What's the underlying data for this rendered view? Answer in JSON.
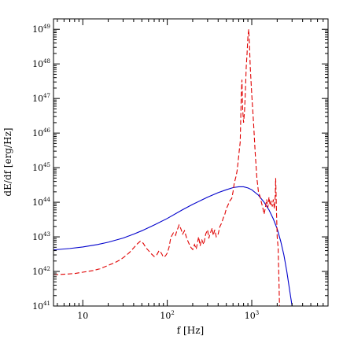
{
  "chart_data": {
    "type": "line",
    "title": "",
    "xlabel": "f [Hz]",
    "ylabel": "dE/df [erg/Hz]",
    "x_scale": "log",
    "y_scale": "log",
    "xlim": [
      4.5,
      8000
    ],
    "ylim": [
      1e+41,
      2e+49
    ],
    "grid": false,
    "x_ticks": [
      {
        "value": 10,
        "base": "10",
        "exp": ""
      },
      {
        "value": 100,
        "base": "10",
        "exp": "2"
      },
      {
        "value": 1000,
        "base": "10",
        "exp": "3"
      }
    ],
    "y_ticks": [
      {
        "value": 1e+41,
        "base": "10",
        "exp": "41"
      },
      {
        "value": 1e+42,
        "base": "10",
        "exp": "42"
      },
      {
        "value": 1e+43,
        "base": "10",
        "exp": "43"
      },
      {
        "value": 1e+44,
        "base": "10",
        "exp": "44"
      },
      {
        "value": 1e+45,
        "base": "10",
        "exp": "45"
      },
      {
        "value": 1e+46,
        "base": "10",
        "exp": "46"
      },
      {
        "value": 1e+47,
        "base": "10",
        "exp": "47"
      },
      {
        "value": 1e+48,
        "base": "10",
        "exp": "48"
      },
      {
        "value": 1e+49,
        "base": "10",
        "exp": "49"
      }
    ],
    "series": [
      {
        "color": "#0000cc",
        "dash": "solid",
        "points": [
          [
            4.5,
            4.2e+42
          ],
          [
            7,
            4.6e+42
          ],
          [
            10,
            5.1e+42
          ],
          [
            15,
            6e+42
          ],
          [
            20,
            7e+42
          ],
          [
            30,
            9.2e+42
          ],
          [
            40,
            1.2e+43
          ],
          [
            50,
            1.5e+43
          ],
          [
            70,
            2.2e+43
          ],
          [
            100,
            3.4e+43
          ],
          [
            150,
            6e+43
          ],
          [
            200,
            8.7e+43
          ],
          [
            300,
            1.4e+44
          ],
          [
            400,
            1.9e+44
          ],
          [
            500,
            2.3e+44
          ],
          [
            600,
            2.65e+44
          ],
          [
            700,
            2.8e+44
          ],
          [
            800,
            2.8e+44
          ],
          [
            900,
            2.6e+44
          ],
          [
            1000,
            2.3e+44
          ],
          [
            1200,
            1.6e+44
          ],
          [
            1400,
            1e+44
          ],
          [
            1600,
            6e+43
          ],
          [
            1800,
            3.3e+43
          ],
          [
            2000,
            1.7e+43
          ],
          [
            2200,
            7.5e+42
          ],
          [
            2400,
            3e+42
          ],
          [
            2600,
            1e+42
          ],
          [
            2800,
            3e+41
          ],
          [
            3000,
            1e+41
          ]
        ]
      },
      {
        "color": "#e00000",
        "dash": "dashed",
        "points": [
          [
            4.5,
            8e+41
          ],
          [
            6,
            8.3e+41
          ],
          [
            8,
            8.7e+41
          ],
          [
            10,
            9.5e+41
          ],
          [
            13,
            1.05e+42
          ],
          [
            16,
            1.2e+42
          ],
          [
            20,
            1.5e+42
          ],
          [
            24,
            1.8e+42
          ],
          [
            28,
            2.2e+42
          ],
          [
            32,
            2.8e+42
          ],
          [
            36,
            3.6e+42
          ],
          [
            40,
            4.8e+42
          ],
          [
            44,
            6.2e+42
          ],
          [
            48,
            7.5e+42
          ],
          [
            52,
            6.5e+42
          ],
          [
            56,
            4.8e+42
          ],
          [
            60,
            4e+42
          ],
          [
            65,
            3.2e+42
          ],
          [
            70,
            2.7e+42
          ],
          [
            75,
            3e+42
          ],
          [
            80,
            4e+42
          ],
          [
            85,
            3.4e+42
          ],
          [
            90,
            2.6e+42
          ],
          [
            95,
            2.8e+42
          ],
          [
            100,
            3.4e+42
          ],
          [
            105,
            5e+42
          ],
          [
            110,
            9.5e+42
          ],
          [
            118,
            1.3e+43
          ],
          [
            125,
            1.1e+43
          ],
          [
            130,
            1.5e+43
          ],
          [
            138,
            2.2e+43
          ],
          [
            145,
            1.7e+43
          ],
          [
            152,
            1.2e+43
          ],
          [
            160,
            1.5e+43
          ],
          [
            170,
            9e+42
          ],
          [
            180,
            6.5e+42
          ],
          [
            190,
            5e+42
          ],
          [
            200,
            4.3e+42
          ],
          [
            210,
            6e+42
          ],
          [
            220,
            4.4e+42
          ],
          [
            235,
            1e+43
          ],
          [
            245,
            5.5e+42
          ],
          [
            255,
            8.5e+42
          ],
          [
            270,
            6e+42
          ],
          [
            285,
            1.2e+43
          ],
          [
            300,
            1.6e+43
          ],
          [
            310,
            9e+42
          ],
          [
            320,
            1.2e+43
          ],
          [
            340,
            1.8e+43
          ],
          [
            350,
            1.1e+43
          ],
          [
            365,
            1.6e+43
          ],
          [
            380,
            1e+43
          ],
          [
            400,
            1.2e+43
          ],
          [
            420,
            2e+43
          ],
          [
            440,
            2.5e+43
          ],
          [
            460,
            3.5e+43
          ],
          [
            480,
            4.5e+43
          ],
          [
            500,
            6.5e+43
          ],
          [
            520,
            8e+43
          ],
          [
            550,
            1.1e+44
          ],
          [
            580,
            1.3e+44
          ],
          [
            600,
            2e+44
          ],
          [
            620,
            3.5e+44
          ],
          [
            650,
            5.5e+44
          ],
          [
            670,
            8e+44
          ],
          [
            690,
            1.5e+45
          ],
          [
            710,
            3e+45
          ],
          [
            730,
            5.5e+45
          ],
          [
            750,
            1e+47
          ],
          [
            765,
            3.5e+47
          ],
          [
            780,
            5e+46
          ],
          [
            800,
            2e+46
          ],
          [
            820,
            4e+46
          ],
          [
            840,
            1.5e+47
          ],
          [
            860,
            8e+47
          ],
          [
            880,
            2e+48
          ],
          [
            900,
            6e+48
          ],
          [
            920,
            1e+49
          ],
          [
            940,
            3.5e+48
          ],
          [
            960,
            8e+47
          ],
          [
            1000,
            1.3e+47
          ],
          [
            1050,
            2e+46
          ],
          [
            1100,
            2.5e+45
          ],
          [
            1150,
            5e+44
          ],
          [
            1200,
            2e+44
          ],
          [
            1250,
            1.5e+44
          ],
          [
            1300,
            1e+44
          ],
          [
            1350,
            7e+43
          ],
          [
            1400,
            4.5e+43
          ],
          [
            1450,
            7e+43
          ],
          [
            1500,
            1.2e+44
          ],
          [
            1550,
            7e+43
          ],
          [
            1600,
            1.4e+44
          ],
          [
            1650,
            8e+43
          ],
          [
            1700,
            1.1e+44
          ],
          [
            1750,
            7.5e+43
          ],
          [
            1800,
            1.2e+44
          ],
          [
            1850,
            6.5e+43
          ],
          [
            1900,
            1.6e+44
          ],
          [
            1920,
            5e+44
          ],
          [
            1950,
            1e+44
          ],
          [
            2000,
            1e+43
          ],
          [
            2050,
            5e+42
          ],
          [
            2100,
            5e+41
          ],
          [
            2130,
            1e+41
          ]
        ]
      }
    ]
  }
}
